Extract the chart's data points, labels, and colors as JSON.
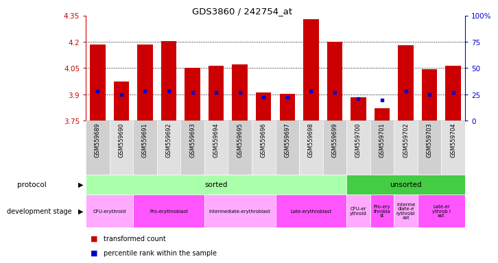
{
  "title": "GDS3860 / 242754_at",
  "samples": [
    "GSM559689",
    "GSM559690",
    "GSM559691",
    "GSM559692",
    "GSM559693",
    "GSM559694",
    "GSM559695",
    "GSM559696",
    "GSM559697",
    "GSM559698",
    "GSM559699",
    "GSM559700",
    "GSM559701",
    "GSM559702",
    "GSM559703",
    "GSM559704"
  ],
  "transformed_count": [
    4.185,
    3.975,
    4.185,
    4.205,
    4.05,
    4.065,
    4.07,
    3.91,
    3.905,
    4.33,
    4.2,
    3.885,
    3.82,
    4.18,
    4.045,
    4.065
  ],
  "percentile_rank": [
    28,
    25,
    28,
    28,
    27,
    27,
    27,
    22,
    22,
    28,
    27,
    21,
    20,
    28,
    25,
    27
  ],
  "ymin": 3.75,
  "ymax": 4.35,
  "yticks": [
    3.75,
    3.9,
    4.05,
    4.2,
    4.35
  ],
  "ytick_labels": [
    "3.75",
    "3.9",
    "4.05",
    "4.2",
    "4.35"
  ],
  "right_yticks": [
    0,
    25,
    50,
    75,
    100
  ],
  "right_ytick_labels": [
    "0",
    "25",
    "50",
    "75",
    "100%"
  ],
  "bar_color": "#cc0000",
  "dot_color": "#0000cc",
  "left_axis_color": "#cc0000",
  "right_axis_color": "#0000cc",
  "protocol_sorted_color": "#aaffaa",
  "protocol_unsorted_color": "#44cc44",
  "protocol_row": {
    "sorted_span": [
      0,
      11
    ],
    "unsorted_span": [
      11,
      16
    ]
  },
  "dev_stages": [
    {
      "label": "CFU-erythroid",
      "span": [
        0,
        2
      ],
      "color": "#ffaaff"
    },
    {
      "label": "Pro-erythroblast",
      "span": [
        2,
        5
      ],
      "color": "#ff55ff"
    },
    {
      "label": "Intermediate-erythroblast",
      "span": [
        5,
        8
      ],
      "color": "#ffaaff"
    },
    {
      "label": "Late-erythroblast",
      "span": [
        8,
        11
      ],
      "color": "#ff55ff"
    },
    {
      "label": "CFU-er\nythroid",
      "span": [
        11,
        12
      ],
      "color": "#ffaaff"
    },
    {
      "label": "Pro-ery\nthrobla\nst",
      "span": [
        12,
        13
      ],
      "color": "#ff55ff"
    },
    {
      "label": "Interme\ndiate-e\nrythrobl\nast",
      "span": [
        13,
        14
      ],
      "color": "#ffaaff"
    },
    {
      "label": "Late-er\nythrob l\nast",
      "span": [
        14,
        16
      ],
      "color": "#ff55ff"
    }
  ]
}
